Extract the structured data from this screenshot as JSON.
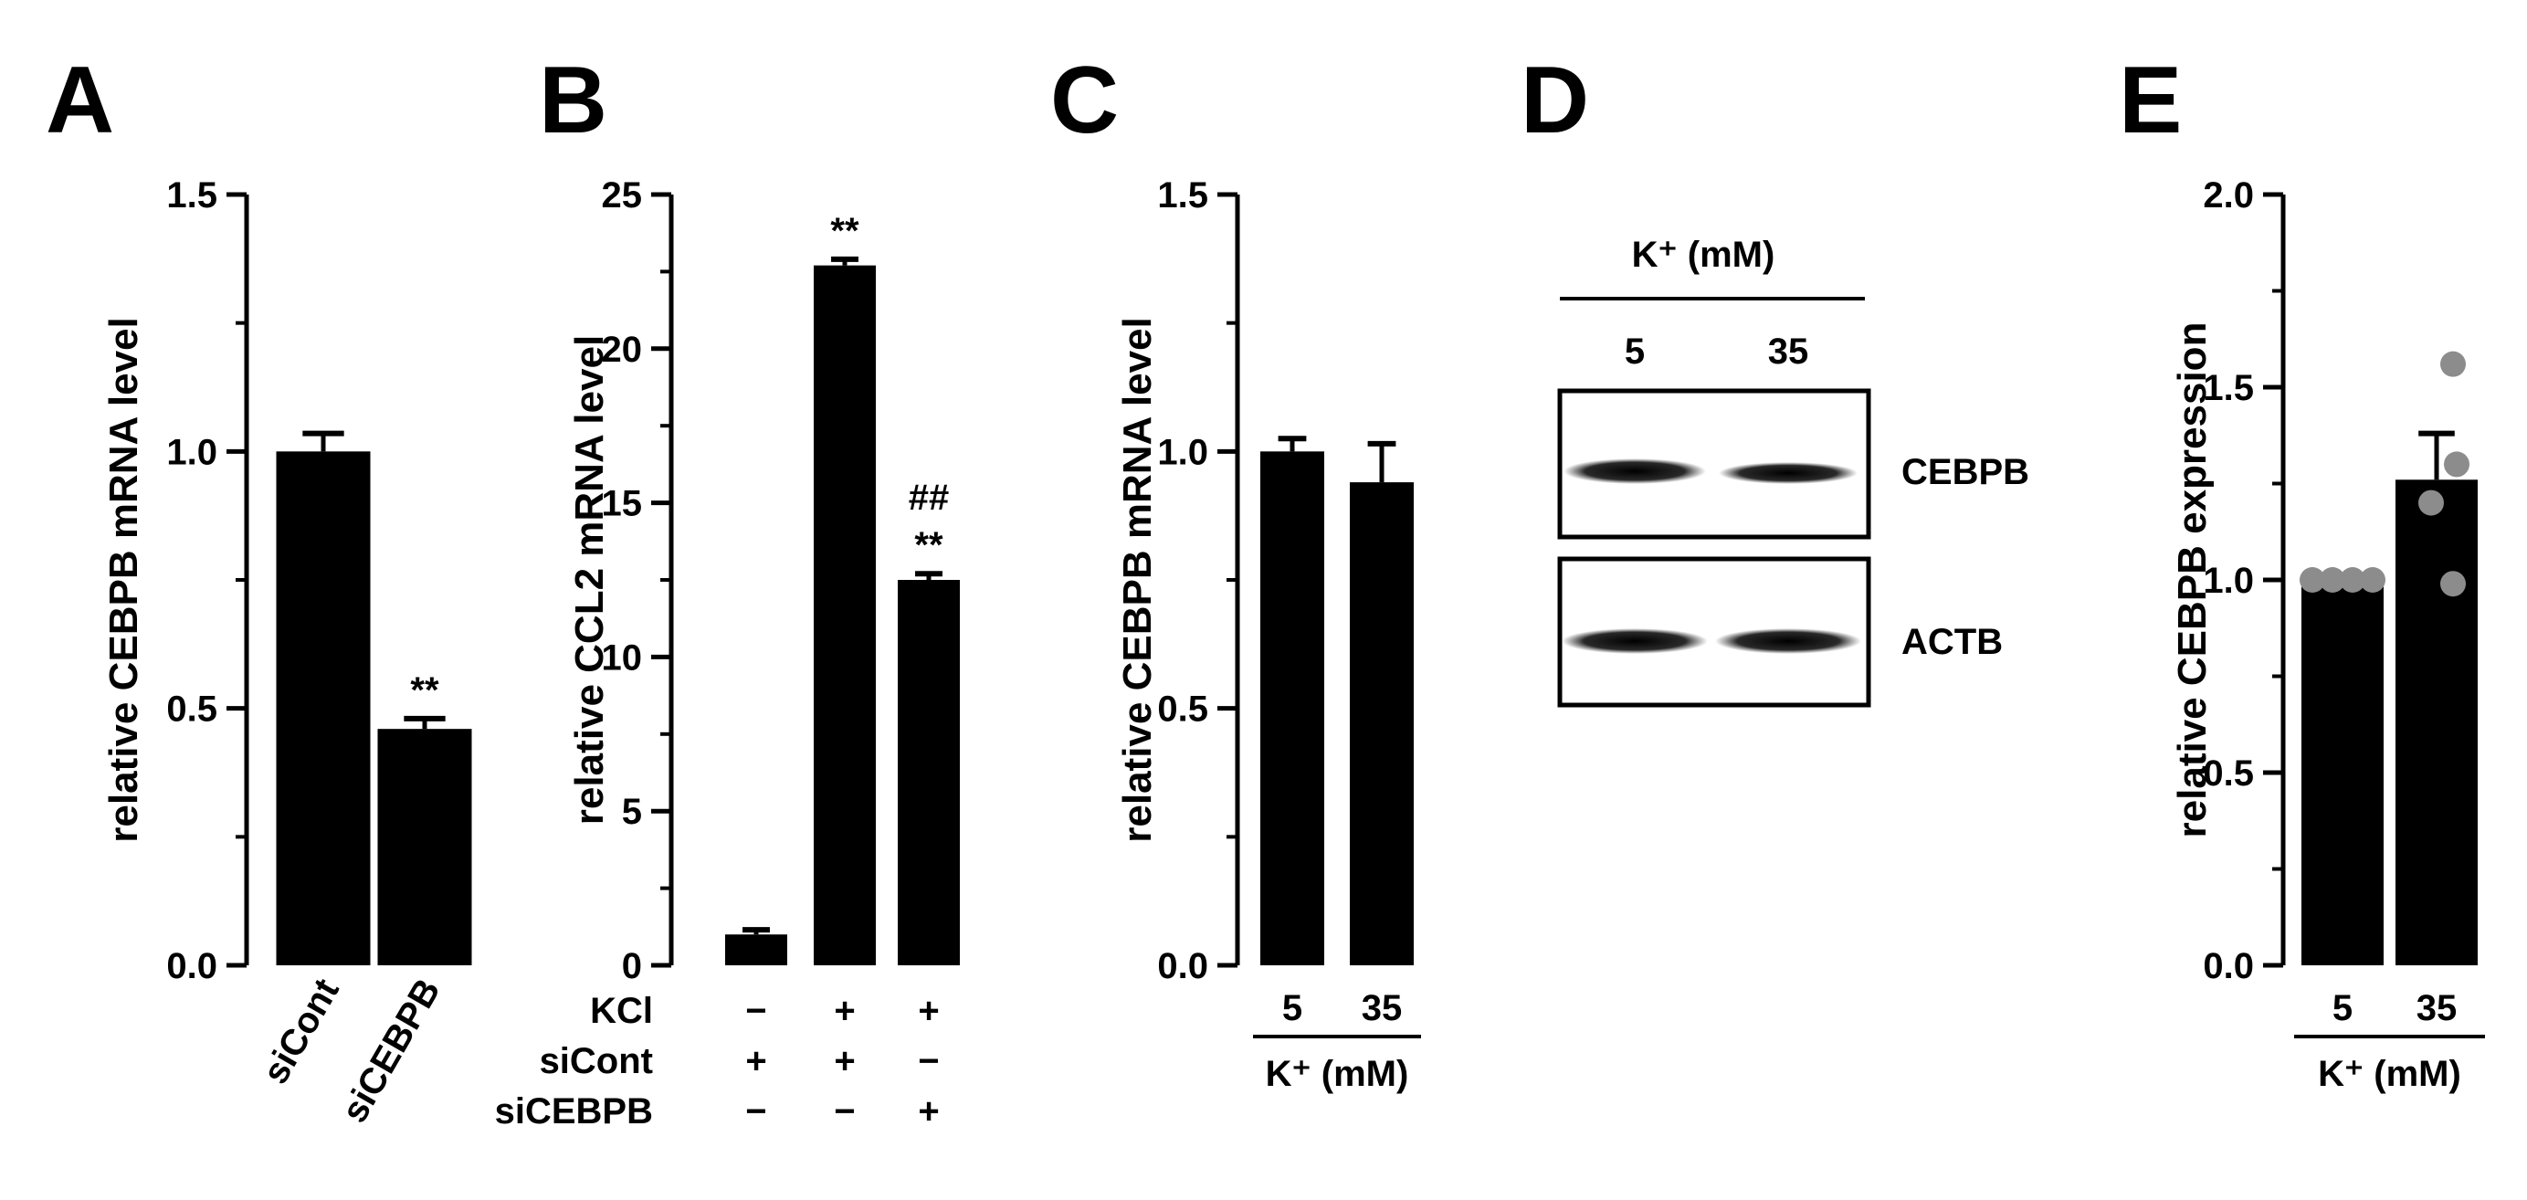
{
  "panels": [
    "A",
    "B",
    "C",
    "D",
    "E"
  ],
  "chart_data": [
    {
      "panel": "A",
      "type": "bar",
      "ylabel": "relative CEBPB mRNA level",
      "ylim": [
        0,
        1.5
      ],
      "yticks": [
        "0.0",
        "0.5",
        "1.0",
        "1.5"
      ],
      "categories": [
        "siCont",
        "siCEBPB"
      ],
      "values": [
        1.0,
        0.46
      ],
      "errors": [
        0.035,
        0.02
      ],
      "annotations": [
        "",
        "**"
      ]
    },
    {
      "panel": "B",
      "type": "bar",
      "ylabel": "relative CCL2 mRNA level",
      "ylim": [
        0,
        25
      ],
      "yticks": [
        "0",
        "5",
        "10",
        "15",
        "20",
        "25"
      ],
      "values": [
        1.0,
        22.7,
        12.5
      ],
      "errors": [
        0.15,
        0.2,
        0.2
      ],
      "annotations": [
        "",
        "**",
        "**"
      ],
      "annotations2": [
        "",
        "",
        "##"
      ],
      "conditions": [
        {
          "label": "KCl",
          "marks": [
            "−",
            "+",
            "+"
          ]
        },
        {
          "label": "siCont",
          "marks": [
            "+",
            "+",
            "−"
          ]
        },
        {
          "label": "siCEBPB",
          "marks": [
            "−",
            "−",
            "+"
          ]
        }
      ]
    },
    {
      "panel": "C",
      "type": "bar",
      "ylabel": "relative CEBPB mRNA level",
      "ylim": [
        0,
        1.5
      ],
      "yticks": [
        "0.0",
        "0.5",
        "1.0",
        "1.5"
      ],
      "categories": [
        "5",
        "35"
      ],
      "values": [
        1.0,
        0.94
      ],
      "errors": [
        0.025,
        0.075
      ],
      "group_label": "K⁺ (mM)"
    },
    {
      "panel": "E",
      "type": "bar",
      "ylabel": "relative CEBPB expression",
      "ylim": [
        0,
        2.0
      ],
      "yticks": [
        "0.0",
        "0.5",
        "1.0",
        "1.5",
        "2.0"
      ],
      "categories": [
        "5",
        "35"
      ],
      "values": [
        1.0,
        1.26
      ],
      "errors": [
        0.0,
        0.12
      ],
      "points": [
        [
          1.0,
          1.0,
          1.0,
          1.0
        ],
        [
          1.56,
          1.3,
          1.2,
          0.99
        ]
      ],
      "point_color": "#8c8c8c",
      "group_label": "K⁺ (mM)"
    }
  ],
  "blot": {
    "header": "K⁺ (mM)",
    "lanes": [
      "5",
      "35"
    ],
    "bands": [
      "CEBPB",
      "ACTB"
    ]
  }
}
